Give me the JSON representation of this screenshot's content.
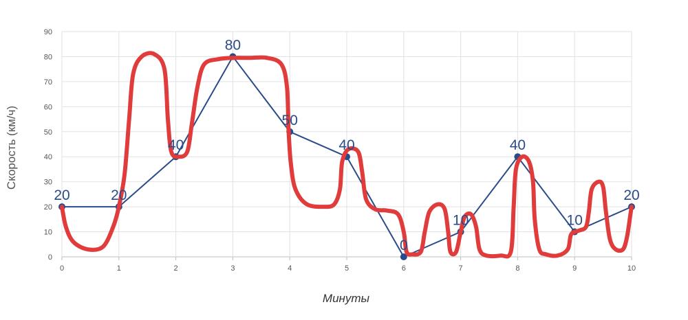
{
  "chart_data": {
    "type": "line",
    "xlabel": "Минуты",
    "ylabel": "Скорость (км/ч)",
    "x": [
      0,
      1,
      2,
      3,
      4,
      5,
      6,
      7,
      8,
      9,
      10
    ],
    "xlim": [
      0,
      10
    ],
    "ylim": [
      0,
      90
    ],
    "yticks": [
      0,
      10,
      20,
      30,
      40,
      50,
      60,
      70,
      80,
      90
    ],
    "grid": true,
    "series": [
      {
        "values": [
          20,
          20,
          40,
          80,
          50,
          40,
          0,
          10,
          40,
          10,
          20
        ],
        "data_labels": [
          "20",
          "20",
          "40",
          "80",
          "50",
          "40",
          "0",
          "10",
          "40",
          "10",
          "20"
        ],
        "color": "#2a4b8a"
      }
    ],
    "annotation": {
      "description": "hand-drawn red freehand curve",
      "color": "#e03c3c",
      "points": [
        [
          0.0,
          20
        ],
        [
          0.07,
          12
        ],
        [
          0.2,
          6
        ],
        [
          0.45,
          3
        ],
        [
          0.72,
          4
        ],
        [
          0.9,
          12
        ],
        [
          1.0,
          20
        ],
        [
          1.1,
          33
        ],
        [
          1.18,
          55
        ],
        [
          1.25,
          73
        ],
        [
          1.4,
          80
        ],
        [
          1.62,
          81
        ],
        [
          1.8,
          75
        ],
        [
          1.86,
          55
        ],
        [
          1.92,
          42
        ],
        [
          2.05,
          40
        ],
        [
          2.2,
          42
        ],
        [
          2.28,
          53
        ],
        [
          2.38,
          68
        ],
        [
          2.5,
          77
        ],
        [
          2.75,
          79
        ],
        [
          3.0,
          79.5
        ],
        [
          3.3,
          79.5
        ],
        [
          3.6,
          79.5
        ],
        [
          3.85,
          77
        ],
        [
          3.95,
          68
        ],
        [
          3.98,
          50
        ],
        [
          4.02,
          37
        ],
        [
          4.1,
          27
        ],
        [
          4.3,
          21
        ],
        [
          4.6,
          20
        ],
        [
          4.78,
          21
        ],
        [
          4.88,
          27
        ],
        [
          4.92,
          38
        ],
        [
          5.03,
          43
        ],
        [
          5.2,
          42
        ],
        [
          5.27,
          34
        ],
        [
          5.34,
          23
        ],
        [
          5.5,
          19
        ],
        [
          5.7,
          18.5
        ],
        [
          5.9,
          17
        ],
        [
          6.0,
          10
        ],
        [
          6.05,
          2
        ],
        [
          6.15,
          1
        ],
        [
          6.3,
          2
        ],
        [
          6.37,
          10
        ],
        [
          6.45,
          18
        ],
        [
          6.6,
          21
        ],
        [
          6.72,
          19
        ],
        [
          6.78,
          10
        ],
        [
          6.82,
          2
        ],
        [
          6.92,
          2
        ],
        [
          7.0,
          10
        ],
        [
          7.07,
          16
        ],
        [
          7.18,
          17
        ],
        [
          7.27,
          12
        ],
        [
          7.33,
          3
        ],
        [
          7.45,
          0.5
        ],
        [
          7.7,
          0.5
        ],
        [
          7.88,
          2
        ],
        [
          7.93,
          20
        ],
        [
          7.97,
          35
        ],
        [
          8.08,
          40
        ],
        [
          8.2,
          38
        ],
        [
          8.27,
          30
        ],
        [
          8.3,
          15
        ],
        [
          8.38,
          3
        ],
        [
          8.5,
          1
        ],
        [
          8.7,
          0.5
        ],
        [
          8.88,
          3
        ],
        [
          8.94,
          9
        ],
        [
          9.08,
          10.5
        ],
        [
          9.2,
          12
        ],
        [
          9.25,
          18
        ],
        [
          9.3,
          27
        ],
        [
          9.42,
          30
        ],
        [
          9.5,
          28
        ],
        [
          9.55,
          18
        ],
        [
          9.62,
          7
        ],
        [
          9.72,
          3
        ],
        [
          9.85,
          3
        ],
        [
          9.92,
          8
        ],
        [
          9.98,
          17
        ],
        [
          10.0,
          20
        ]
      ]
    }
  }
}
